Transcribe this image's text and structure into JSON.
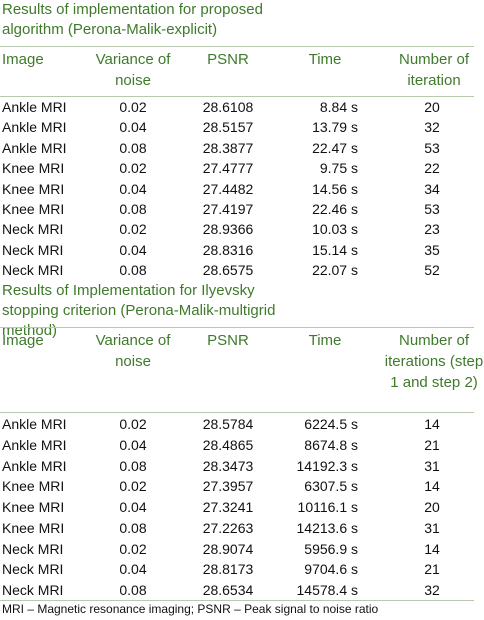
{
  "sections": [
    {
      "title": "Results of implementation for proposed algorithm (Perona-Malik-explicit)",
      "headers": [
        "Image",
        "Variance of noise",
        "PSNR",
        "Time",
        "Number of iteration"
      ],
      "rows": [
        [
          "Ankle MRI",
          "0.02",
          "28.6108",
          "8.84 s",
          "20"
        ],
        [
          "Ankle MRI",
          "0.04",
          "28.5157",
          "13.79 s",
          "32"
        ],
        [
          "Ankle MRI",
          "0.08",
          "28.3877",
          "22.47 s",
          "53"
        ],
        [
          "Knee MRI",
          "0.02",
          "27.4777",
          "9.75 s",
          "22"
        ],
        [
          "Knee MRI",
          "0.04",
          "27.4482",
          "14.56 s",
          "34"
        ],
        [
          "Knee MRI",
          "0.08",
          "27.4197",
          "22.46 s",
          "53"
        ],
        [
          "Neck MRI",
          "0.02",
          "28.9366",
          "10.03 s",
          "23"
        ],
        [
          "Neck MRI",
          "0.04",
          "28.8316",
          "15.14 s",
          "35"
        ],
        [
          "Neck MRI",
          "0.08",
          "28.6575",
          "22.07 s",
          "52"
        ]
      ]
    },
    {
      "title": "Results of Implementation for Ilyevsky stopping criterion (Perona-Malik-multigrid method)",
      "headers": [
        "Image",
        "Variance of noise",
        "PSNR",
        "Time",
        "Number of iterations (step 1 and step 2)"
      ],
      "rows": [
        [
          "Ankle MRI",
          "0.02",
          "28.5784",
          "6224.5 s",
          "14"
        ],
        [
          "Ankle MRI",
          "0.04",
          "28.4865",
          "8674.8 s",
          "21"
        ],
        [
          "Ankle MRI",
          "0.08",
          "28.3473",
          "14192.3 s",
          "31"
        ],
        [
          "Knee MRI",
          "0.02",
          "27.3957",
          "6307.5 s",
          "14"
        ],
        [
          "Knee MRI",
          "0.04",
          "27.3241",
          "10116.1 s",
          "20"
        ],
        [
          "Knee MRI",
          "0.08",
          "27.2263",
          "14213.6 s",
          "31"
        ],
        [
          "Neck MRI",
          "0.02",
          "28.9074",
          "5956.9 s",
          "14"
        ],
        [
          "Neck MRI",
          "0.04",
          "28.8173",
          "9704.6 s",
          "21"
        ],
        [
          "Neck MRI",
          "0.08",
          "28.6534",
          "14578.4 s",
          "32"
        ]
      ]
    }
  ],
  "footnote": "MRI – Magnetic resonance imaging; PSNR – Peak signal to noise ratio"
}
